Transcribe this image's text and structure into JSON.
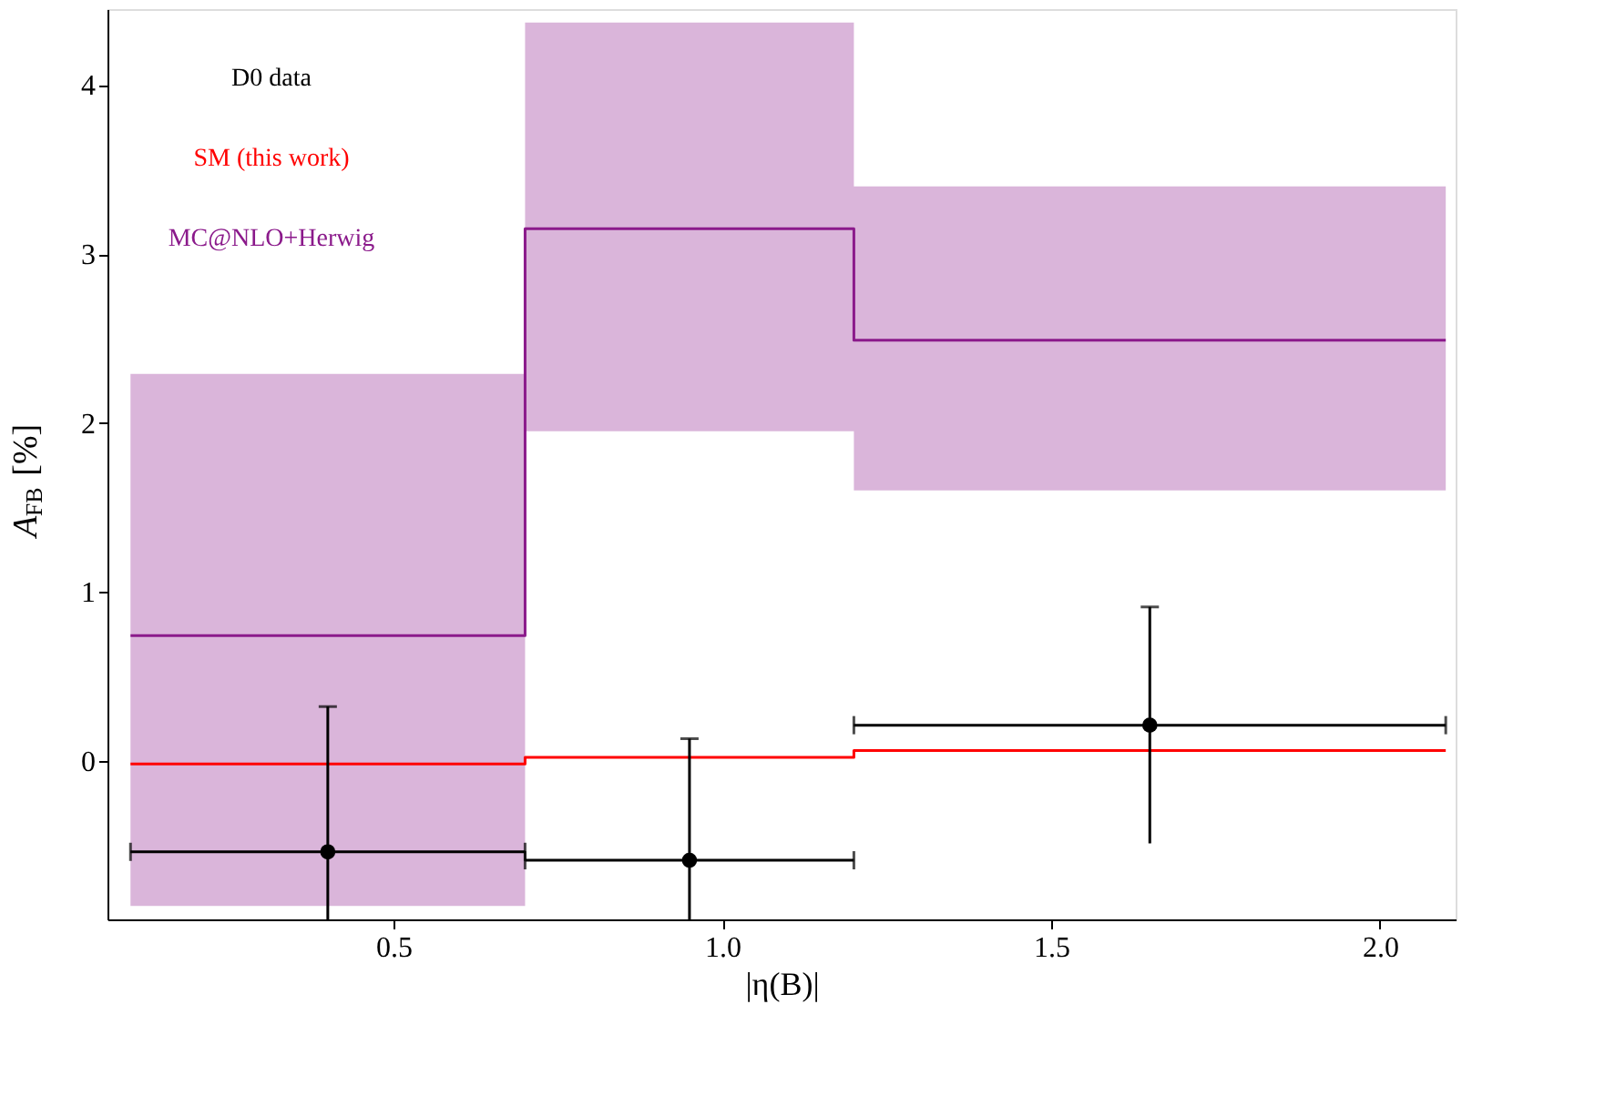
{
  "chart_data": {
    "type": "step",
    "xlabel": "|η(B)|",
    "ylabel": "A$_{FB}$ [%]",
    "xlim": [
      0.065,
      2.115
    ],
    "xticks": [
      {
        "value": 0.5,
        "label": "0.5"
      },
      {
        "value": 1,
        "label": "1.0"
      },
      {
        "value": 1.5,
        "label": "1.5"
      },
      {
        "value": 2,
        "label": "2.0"
      }
    ],
    "ylim": [
      -0.94,
      4.45
    ],
    "yticks": [
      0,
      1,
      2,
      3,
      4
    ],
    "legend": "top left",
    "grid": false,
    "series": [
      {
        "name": "MC@NLO+Herwig",
        "color": "#8b1a8b",
        "x": [
          0.1,
          0.7,
          1.2,
          2.1
        ],
        "values": [
          0.74,
          3.15,
          2.49,
          2.49
        ],
        "lower": [
          -0.86,
          1.95,
          1.6,
          1.6
        ],
        "upper": [
          2.29,
          4.37,
          3.4,
          3.4
        ]
      },
      {
        "name": "SM (this work)",
        "color": "#ff0000",
        "x": [
          0.1,
          0.7,
          1.2,
          2.1
        ],
        "values": [
          -0.02,
          0.02,
          0.06,
          0.06
        ]
      },
      {
        "name": "D0 data",
        "type": "scatter",
        "color": "#000000",
        "marker": "circle",
        "x": [
          0.4,
          0.95,
          1.65
        ],
        "values": [
          -0.54,
          -0.59,
          0.21
        ],
        "errors": [
          [
            -0.94,
            0.32
          ],
          [
            -0.94,
            0.13
          ],
          [
            -0.49,
            0.91
          ]
        ],
        "xerrors": [
          [
            0.1,
            0.7
          ],
          [
            0.7,
            1.2
          ],
          [
            1.2,
            2.1
          ]
        ]
      }
    ]
  }
}
